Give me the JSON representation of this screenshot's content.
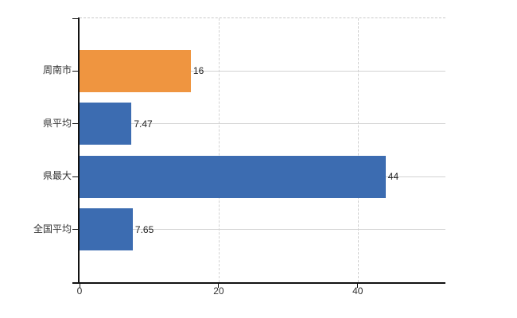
{
  "chart_data": {
    "type": "bar",
    "orientation": "horizontal",
    "title": "",
    "categories": [
      "周南市",
      "県平均",
      "県最大",
      "全国平均"
    ],
    "values": [
      16,
      7.47,
      44,
      7.65
    ],
    "value_labels": [
      "16",
      "7.47",
      "44",
      "7.65"
    ],
    "bar_colors": [
      "#ef9540",
      "#3c6cb1",
      "#3c6cb1",
      "#3c6cb1"
    ],
    "x_ticks": [
      0,
      20,
      40
    ],
    "x_tick_labels": [
      "0",
      "20",
      "40"
    ],
    "xlim": [
      0,
      52.6
    ],
    "grid": true,
    "legend": "none",
    "background": "#ffffff",
    "colors": {
      "highlight_bar": "#ef9540",
      "default_bar": "#3c6cb1",
      "gridline": "#d3d3d3",
      "axis": "#111111",
      "label_text": "#333333"
    }
  }
}
